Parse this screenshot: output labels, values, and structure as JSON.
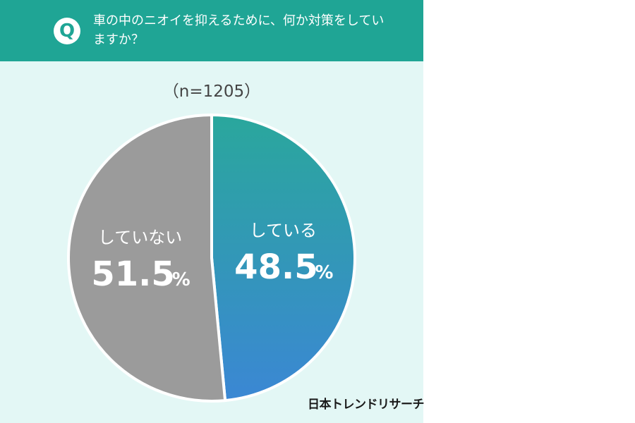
{
  "header": {
    "q_badge": "Q",
    "question": "車の中のニオイを抑えるために、何か対策をしていますか？",
    "background_color": "#1fa595"
  },
  "sample_size": "（n=1205）",
  "chart_data": {
    "type": "pie",
    "title": "",
    "slices": [
      {
        "label": "している",
        "value": 48.5,
        "display": "48.5",
        "unit": "%",
        "color": "#3b87d4",
        "color_to": "#2aa79c"
      },
      {
        "label": "していない",
        "value": 51.5,
        "display": "51.5",
        "unit": "%",
        "color": "#9b9b9b"
      }
    ],
    "start": "top",
    "direction": "clockwise"
  },
  "brand": "日本トレンドリサーチ"
}
